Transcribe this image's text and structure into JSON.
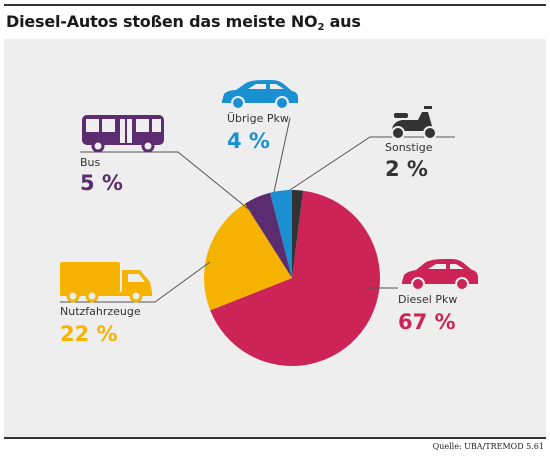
{
  "header": {
    "title_main": "Diesel-Autos stoßen das meiste NO",
    "title_sub": "2",
    "title_tail": " aus"
  },
  "footer": {
    "source": "Quelle: UBA/TREMOD 5.61"
  },
  "chart_data": {
    "type": "pie",
    "title": "Diesel-Autos stoßen das meiste NO2 aus",
    "slices": [
      {
        "label": "Diesel Pkw",
        "value": 67,
        "display": "67 %",
        "color": "#cc2457",
        "icon": "car-icon"
      },
      {
        "label": "Nutzfahrzeuge",
        "value": 22,
        "display": "22 %",
        "color": "#f5b300",
        "icon": "truck-icon"
      },
      {
        "label": "Bus",
        "value": 5,
        "display": "5 %",
        "color": "#5b2c70",
        "icon": "bus-icon"
      },
      {
        "label": "Übrige Pkw",
        "value": 4,
        "display": "4 %",
        "color": "#1a8fd1",
        "icon": "car-icon"
      },
      {
        "label": "Sonstige",
        "value": 2,
        "display": "2 %",
        "color": "#333333",
        "icon": "scooter-icon"
      }
    ]
  }
}
